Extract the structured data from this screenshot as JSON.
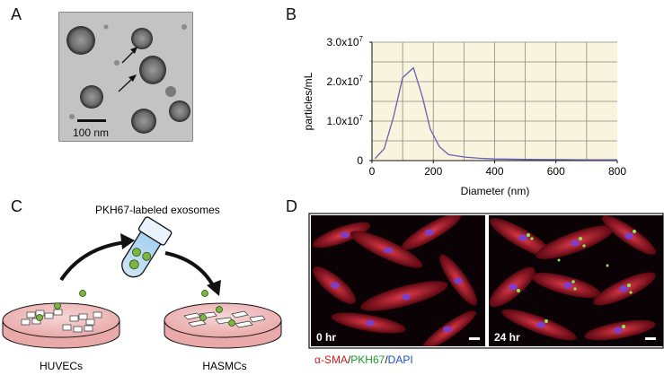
{
  "panels": {
    "a": {
      "letter": "A",
      "scale_bar_label": "100 nm"
    },
    "b": {
      "letter": "B"
    },
    "c": {
      "letter": "C",
      "tube_label": "PKH67-labeled exosomes",
      "left_dish_label": "HUVECs",
      "right_dish_label": "HASMCs"
    },
    "d": {
      "letter": "D",
      "image_left_label": "0 hr",
      "image_right_label": "24 hr",
      "stain_caption": {
        "part1": "α-SMA",
        "sep1": "/",
        "part2": "PKH67",
        "sep2": "/",
        "part3": "DAPI"
      },
      "stain_colors": {
        "part1": "#d21a1a",
        "part2": "#1a9a2a",
        "part3": "#1a4fd2"
      }
    }
  },
  "chart_data": {
    "type": "line",
    "title": "",
    "xlabel": "Diameter (nm)",
    "ylabel": "particles/mL",
    "xlim": [
      0,
      800
    ],
    "ylim": [
      0,
      30000000
    ],
    "x_ticks": [
      0,
      200,
      400,
      600,
      800
    ],
    "y_tick_labels": [
      {
        "value": 0,
        "base": "0",
        "exp": ""
      },
      {
        "value": 10000000,
        "base": "1.0x10",
        "exp": "7"
      },
      {
        "value": 20000000,
        "base": "2.0x10",
        "exp": "7"
      },
      {
        "value": 30000000,
        "base": "3.0x10",
        "exp": "7"
      }
    ],
    "grid": true,
    "plot_background": "#f8f4de",
    "line_color": "#6a5fb0",
    "series": [
      {
        "x": [
          10,
          40,
          70,
          100,
          135,
          165,
          190,
          220,
          250,
          300,
          350,
          400,
          500,
          600,
          700,
          800
        ],
        "y": [
          500000,
          3000000,
          11000000,
          21000000,
          23500000,
          16000000,
          8000000,
          3500000,
          1500000,
          900000,
          600000,
          400000,
          300000,
          250000,
          200000,
          200000
        ]
      }
    ]
  }
}
